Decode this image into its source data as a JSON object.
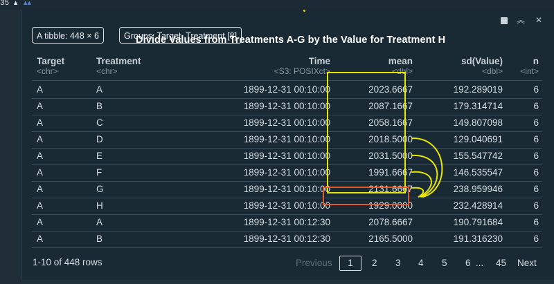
{
  "editor": {
    "line_number": "35",
    "fold_marker": "▴"
  },
  "panel_icons": {
    "icon1": "clear-console-icon",
    "icon2": "collapse-icon",
    "icon3": "close-icon"
  },
  "badges": {
    "tibble": "A tibble: 448 × 6",
    "groups": "Groups: Target, Treatment [8]"
  },
  "annotation": {
    "title": "Divide Values from Treatments A-G by the Value for Treatment H"
  },
  "columns": [
    {
      "name": "Target",
      "type": "<chr>"
    },
    {
      "name": "Treatment",
      "type": "<chr>"
    },
    {
      "name": "Time",
      "type": "<S3: POSIXct>"
    },
    {
      "name": "mean",
      "type": "<dbl>"
    },
    {
      "name": "sd(Value)",
      "type": "<dbl>"
    },
    {
      "name": "n",
      "type": "<int>"
    }
  ],
  "rows": [
    {
      "target": "A",
      "treatment": "A",
      "time": "1899-12-31 00:10:00",
      "mean": "2023.6667",
      "sd": "192.289019",
      "n": "6"
    },
    {
      "target": "A",
      "treatment": "B",
      "time": "1899-12-31 00:10:00",
      "mean": "2087.1667",
      "sd": "179.314714",
      "n": "6"
    },
    {
      "target": "A",
      "treatment": "C",
      "time": "1899-12-31 00:10:00",
      "mean": "2058.1667",
      "sd": "149.807098",
      "n": "6"
    },
    {
      "target": "A",
      "treatment": "D",
      "time": "1899-12-31 00:10:00",
      "mean": "2018.5000",
      "sd": "129.040691",
      "n": "6"
    },
    {
      "target": "A",
      "treatment": "E",
      "time": "1899-12-31 00:10:00",
      "mean": "2031.5000",
      "sd": "155.547742",
      "n": "6"
    },
    {
      "target": "A",
      "treatment": "F",
      "time": "1899-12-31 00:10:00",
      "mean": "1991.6667",
      "sd": "146.535547",
      "n": "6"
    },
    {
      "target": "A",
      "treatment": "G",
      "time": "1899-12-31 00:10:00",
      "mean": "2131.6667",
      "sd": "238.959946",
      "n": "6"
    },
    {
      "target": "A",
      "treatment": "H",
      "time": "1899-12-31 00:10:00",
      "mean": "1929.0000",
      "sd": "232.428914",
      "n": "6"
    },
    {
      "target": "A",
      "treatment": "A",
      "time": "1899-12-31 00:12:30",
      "mean": "2078.6667",
      "sd": "190.791684",
      "n": "6"
    },
    {
      "target": "A",
      "treatment": "B",
      "time": "1899-12-31 00:12:30",
      "mean": "2165.5000",
      "sd": "191.316230",
      "n": "6"
    }
  ],
  "pagination": {
    "info": "1-10 of 448 rows",
    "previous": "Previous",
    "pages": [
      "1",
      "2",
      "3",
      "4",
      "5",
      "6"
    ],
    "ellipsis": "...",
    "last": "45",
    "next": "Next"
  },
  "colors": {
    "highlight_yellow": "#e6e600",
    "highlight_red": "#e05a2c",
    "background": "#1a2a34"
  }
}
